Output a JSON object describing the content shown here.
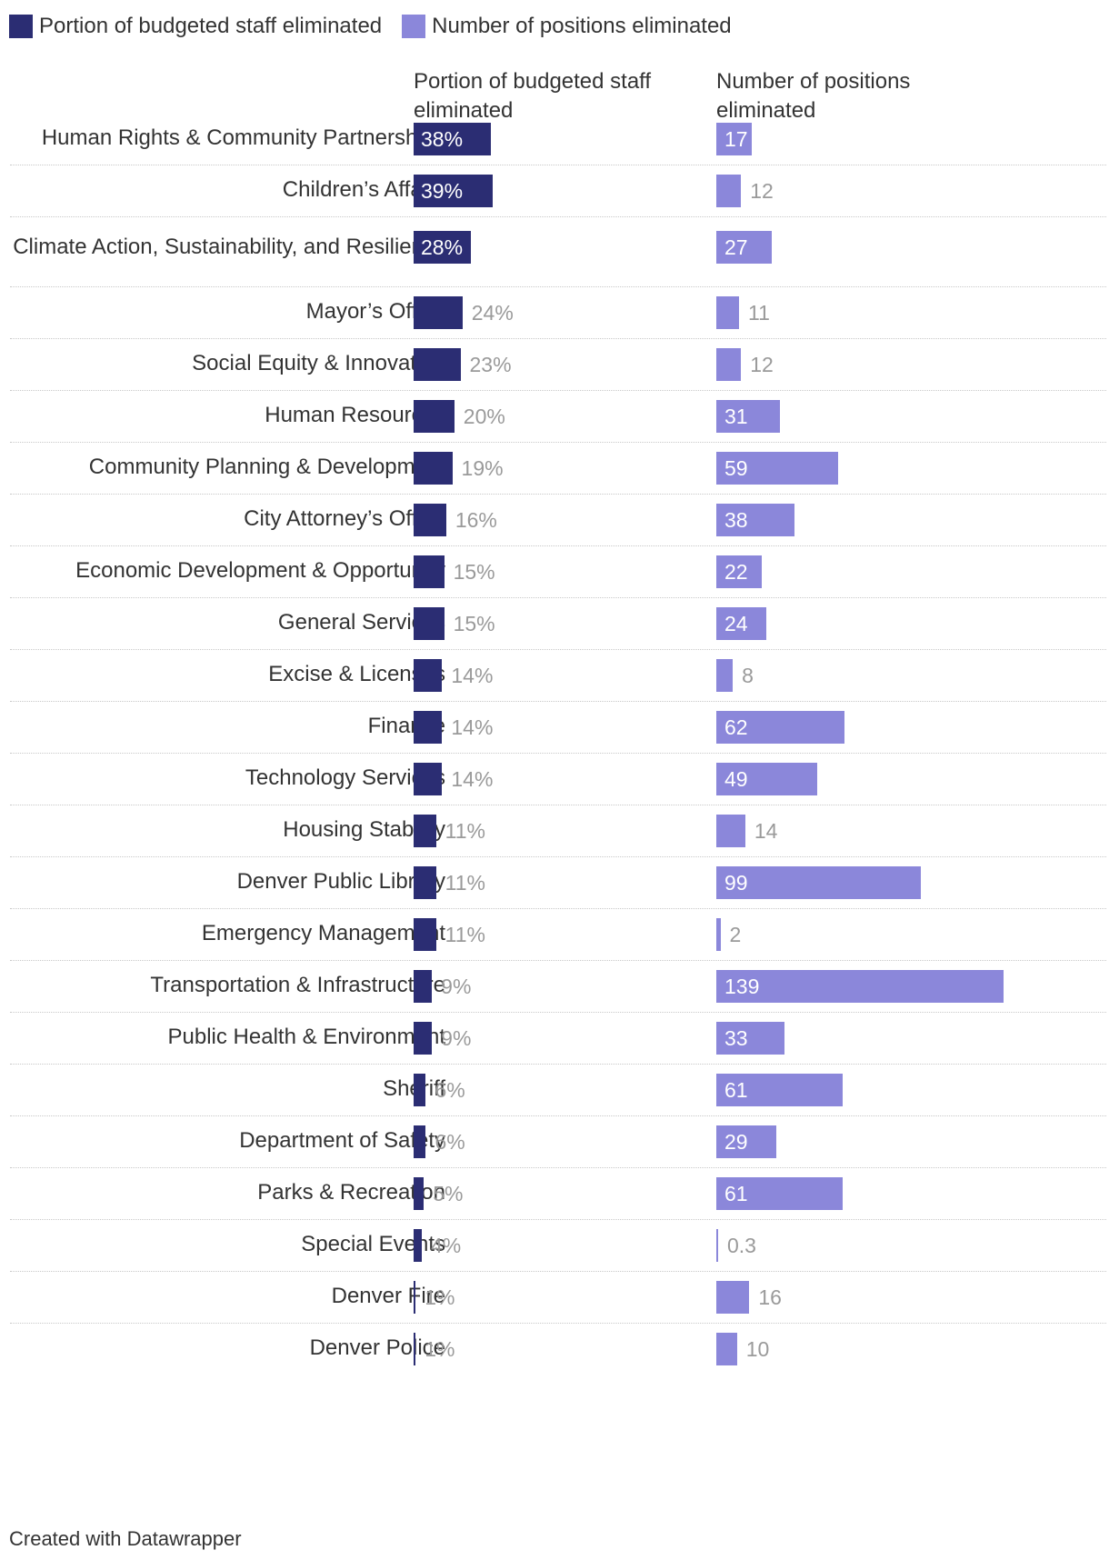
{
  "legend": [
    {
      "label": "Portion of budgeted staff eliminated",
      "color": "#2b2d73"
    },
    {
      "label": "Number of positions eliminated",
      "color": "#8b87da"
    }
  ],
  "columns": {
    "pct_header": "Portion of budgeted staff eliminated",
    "num_header": "Number of positions eliminated"
  },
  "colors": {
    "pct_bar": "#2b2d73",
    "num_bar": "#8b87da",
    "label_inside": "#ffffff",
    "label_outside": "#9a9a9a"
  },
  "chart_data": {
    "type": "bar",
    "orientation": "horizontal",
    "categories": [
      "Human Rights & Community Partnerships",
      "Children’s Affairs",
      "Climate Action, Sustainability, and Resiliency",
      "Mayor’s Office",
      "Social Equity & Innovation",
      "Human Resources",
      "Community Planning & Development",
      "City Attorney’s Office",
      "Economic Development & Opportunity",
      "General Services",
      "Excise & Licenses",
      "Finance",
      "Technology Services",
      "Housing Stability",
      "Denver Public Library",
      "Emergency Management",
      "Transportation & Infrastructure",
      "Public Health & Environment",
      "Sheriff",
      "Department of Safety",
      "Parks & Recreation",
      "Special Events",
      "Denver Fire",
      "Denver Police"
    ],
    "series": [
      {
        "name": "Portion of budgeted staff eliminated",
        "values": [
          38,
          39,
          28,
          24,
          23,
          20,
          19,
          16,
          15,
          15,
          14,
          14,
          14,
          11,
          11,
          11,
          9,
          9,
          6,
          6,
          5,
          4,
          1,
          1
        ],
        "labels": [
          "38%",
          "39%",
          "28%",
          "24%",
          "23%",
          "20%",
          "19%",
          "16%",
          "15%",
          "15%",
          "14%",
          "14%",
          "14%",
          "11%",
          "11%",
          "11%",
          "9%",
          "9%",
          "6%",
          "6%",
          "5%",
          "4%",
          "1%",
          "1%"
        ],
        "max": 100
      },
      {
        "name": "Number of positions eliminated",
        "values": [
          17,
          12,
          27,
          11,
          12,
          31,
          59,
          38,
          22,
          24,
          8,
          62,
          49,
          14,
          99,
          2,
          139,
          33,
          61,
          29,
          61,
          0.3,
          16,
          10
        ],
        "labels": [
          "17",
          "12",
          "27",
          "11",
          "12",
          "31",
          "59",
          "38",
          "22",
          "24",
          "8",
          "62",
          "49",
          "14",
          "99",
          "2",
          "139",
          "33",
          "61",
          "29",
          "61",
          "0.3",
          "16",
          "10"
        ],
        "max": 139
      }
    ]
  },
  "footer": {
    "credit": "Created with Datawrapper"
  }
}
